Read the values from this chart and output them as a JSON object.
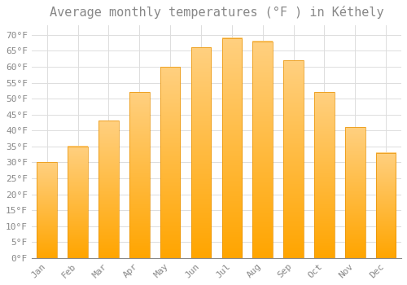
{
  "title": "Average monthly temperatures (°F ) in Kéthely",
  "months": [
    "Jan",
    "Feb",
    "Mar",
    "Apr",
    "May",
    "Jun",
    "Jul",
    "Aug",
    "Sep",
    "Oct",
    "Nov",
    "Dec"
  ],
  "values": [
    30,
    35,
    43,
    52,
    60,
    66,
    69,
    68,
    62,
    52,
    41,
    33
  ],
  "bar_color_top": "#FFD080",
  "bar_color_bottom": "#FFA500",
  "bar_edge_color": "#E89000",
  "background_color": "#FFFFFF",
  "grid_color": "#DDDDDD",
  "text_color": "#888888",
  "ylim": [
    0,
    73
  ],
  "yticks": [
    0,
    5,
    10,
    15,
    20,
    25,
    30,
    35,
    40,
    45,
    50,
    55,
    60,
    65,
    70
  ],
  "title_fontsize": 11,
  "tick_fontsize": 8,
  "font_family": "monospace"
}
